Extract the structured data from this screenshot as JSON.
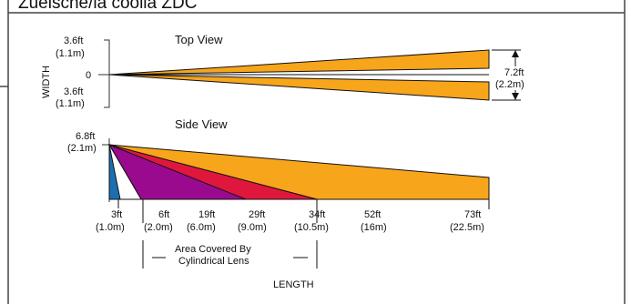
{
  "header": {
    "title": "Zuelsche/ia coolia ZDC"
  },
  "colors": {
    "orange": "#f7a51b",
    "red": "#e0173d",
    "purple": "#990a8f",
    "blue": "#1b6fb0",
    "frame": "#444444"
  },
  "top_view": {
    "title": "Top View",
    "axis_label": "WIDTH",
    "upper_ft": "3.6ft",
    "upper_m": "(1.1m)",
    "center": "0",
    "lower_ft": "3.6ft",
    "lower_m": "(1.1m)",
    "span_ft": "7.2ft",
    "span_m": "(2.2m)"
  },
  "side_view": {
    "title": "Side View",
    "height_ft": "6.8ft",
    "height_m": "(2.1m)",
    "distances": [
      {
        "ft": "3ft",
        "m": "(1.0m)"
      },
      {
        "ft": "6ft",
        "m": "(2.0m)"
      },
      {
        "ft": "19ft",
        "m": "(6.0m)"
      },
      {
        "ft": "29ft",
        "m": "(9.0m)"
      },
      {
        "ft": "34ft",
        "m": "(10.5m)"
      },
      {
        "ft": "52ft",
        "m": "(16m)"
      },
      {
        "ft": "73ft",
        "m": "(22.5m)"
      }
    ],
    "bracket_line1": "Area Covered By",
    "bracket_line2": "Cylindrical Lens",
    "length_label": "LENGTH"
  }
}
